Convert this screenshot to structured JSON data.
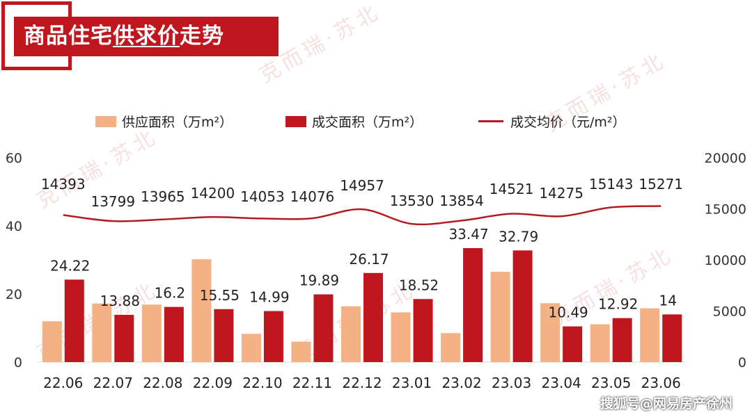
{
  "header": {
    "title_parts": [
      "商品住宅",
      "供求价",
      "走势"
    ]
  },
  "legend": {
    "supply": "供应面积（万m²）",
    "deal": "成交面积（万m²）",
    "price": "成交均价（元/m²）"
  },
  "watermark": "克而瑞·苏北",
  "footer": "搜狐号@网易房产徐州",
  "colors": {
    "supply": "#f4b183",
    "deal": "#c0161d",
    "price": "#b01c22",
    "title_bg": "#c0161d"
  },
  "chart_data": {
    "type": "bar",
    "categories": [
      "22.06",
      "22.07",
      "22.08",
      "22.09",
      "22.10",
      "22.11",
      "22.12",
      "23.01",
      "23.02",
      "23.03",
      "23.04",
      "23.05",
      "23.06"
    ],
    "series": [
      {
        "name": "供应面积（万m²）",
        "type": "bar",
        "axis": "left",
        "values": [
          12,
          17.2,
          16.9,
          30.2,
          8.3,
          6,
          16.4,
          14.6,
          8.5,
          26.5,
          17.3,
          11.1,
          15.8
        ]
      },
      {
        "name": "成交面积（万m²）",
        "type": "bar",
        "axis": "left",
        "values": [
          24.22,
          13.88,
          16.2,
          15.55,
          14.99,
          19.89,
          26.17,
          18.52,
          33.47,
          32.79,
          10.49,
          12.92,
          14
        ],
        "labels": [
          "24.22",
          "13.88",
          "16.2",
          "15.55",
          "14.99",
          "19.89",
          "26.17",
          "18.52",
          "33.47",
          "32.79",
          "10.49",
          "12.92",
          "14"
        ]
      },
      {
        "name": "成交均价（元/m²）",
        "type": "line",
        "axis": "right",
        "values": [
          14393,
          13799,
          13965,
          14200,
          14053,
          14076,
          14957,
          13530,
          13854,
          14521,
          14275,
          15143,
          15271
        ],
        "labels": [
          "14393",
          "13799",
          "13965",
          "14200",
          "14053",
          "14076",
          "14957",
          "13530",
          "13854",
          "14521",
          "14275",
          "15143",
          "15271"
        ]
      }
    ],
    "y_left": {
      "ylim": [
        0,
        60
      ],
      "ticks": [
        "0",
        "20",
        "40",
        "60"
      ]
    },
    "y_right": {
      "ylim": [
        0,
        20000
      ],
      "ticks": [
        "0",
        "5000",
        "10000",
        "15000",
        "20000"
      ]
    },
    "legend_position": "top",
    "grid": false
  }
}
